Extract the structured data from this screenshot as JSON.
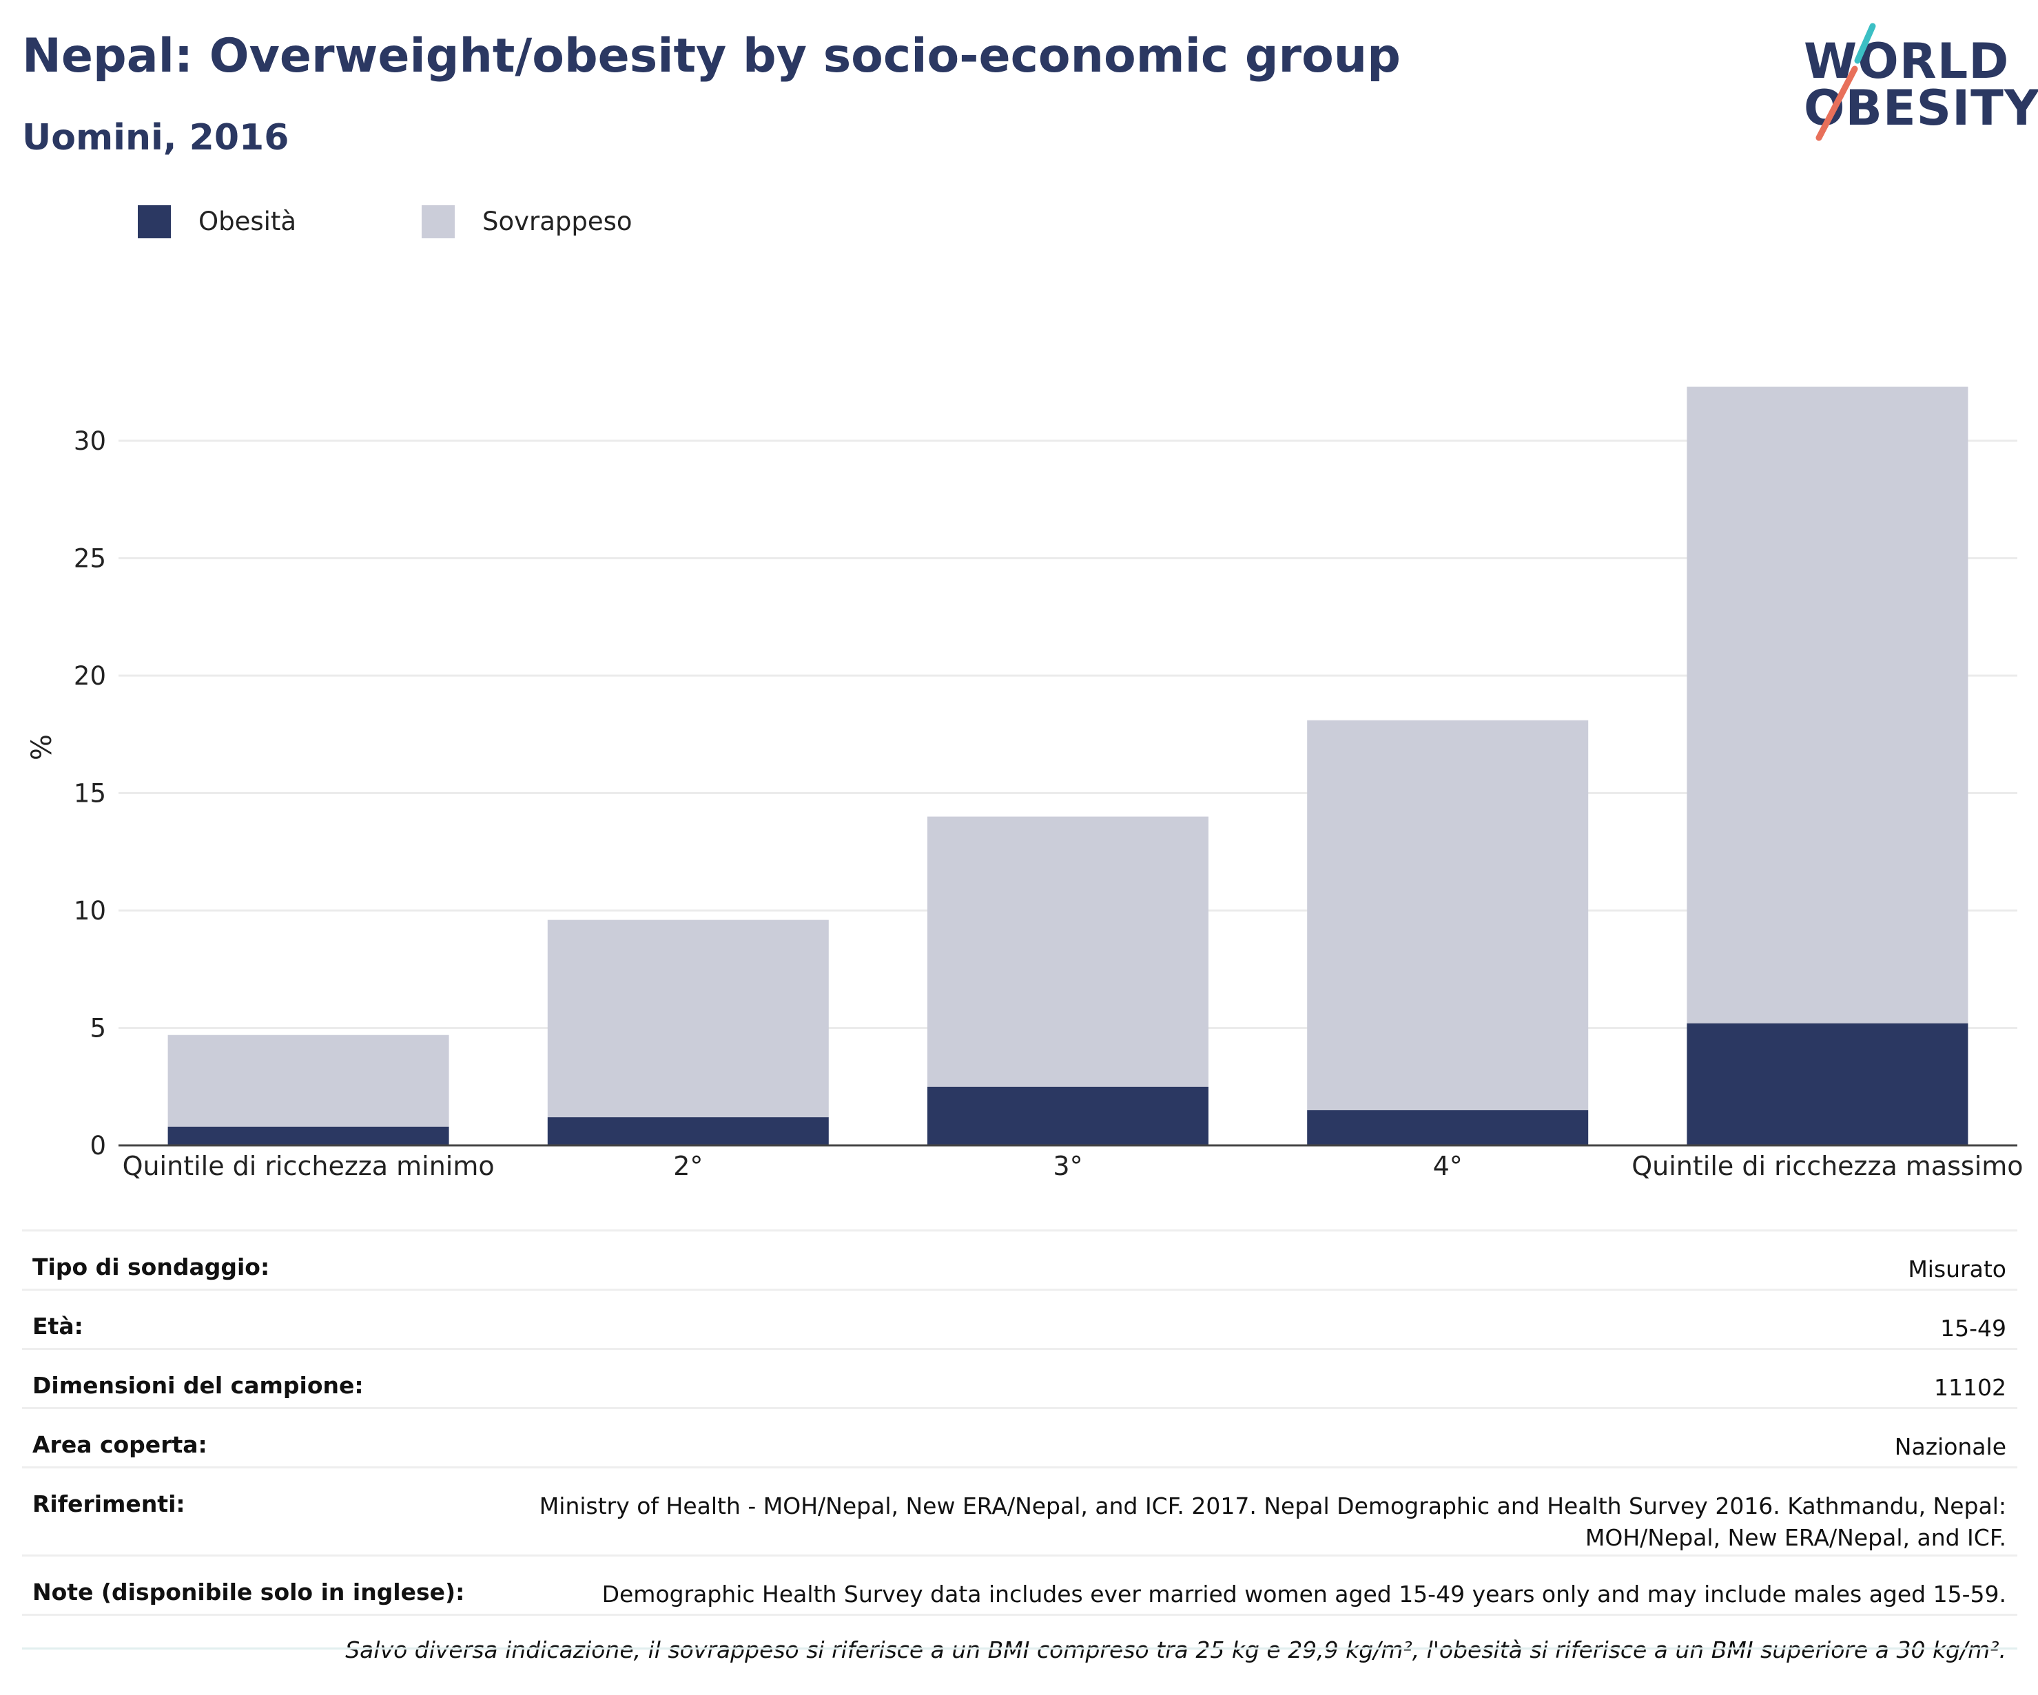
{
  "title": "Nepal: Overweight/obesity by socio-economic group",
  "subtitle": "Uomini, 2016",
  "logo": {
    "line1": "WORLD",
    "line2": "OBESITY",
    "accent1": "#3bbfc4",
    "accent2": "#e8705a"
  },
  "colors": {
    "obesity": "#2b3862",
    "overweight": "#cbcdd9",
    "text": "#2b3862"
  },
  "legend": {
    "placement": "top-left",
    "items": [
      {
        "label": "Obesità",
        "color": "#2b3862"
      },
      {
        "label": "Sovrappeso",
        "color": "#cbcdd9"
      }
    ]
  },
  "chart_data": {
    "type": "bar",
    "stacked": true,
    "categories": [
      "Quintile di ricchezza minimo",
      "2°",
      "3°",
      "4°",
      "Quintile di ricchezza massimo"
    ],
    "series": [
      {
        "name": "Obesità",
        "values": [
          0.8,
          1.2,
          2.5,
          1.5,
          5.2
        ]
      },
      {
        "name": "Sovrappeso",
        "values": [
          3.9,
          8.4,
          11.5,
          16.6,
          27.1
        ]
      }
    ],
    "ylabel": "%",
    "ylim": [
      0,
      33
    ],
    "yticks": [
      0,
      5,
      10,
      15,
      20,
      25,
      30
    ],
    "grid": true
  },
  "info": {
    "rows": [
      {
        "label": "Tipo di sondaggio:",
        "value": [
          "Misurato"
        ]
      },
      {
        "label": "Età:",
        "value": [
          "15-49"
        ]
      },
      {
        "label": "Dimensioni del campione:",
        "value": [
          "11102"
        ]
      },
      {
        "label": "Area coperta:",
        "value": [
          "Nazionale"
        ]
      },
      {
        "label": "Riferimenti:",
        "value": [
          "Ministry of Health - MOH/Nepal, New ERA/Nepal, and ICF. 2017. Nepal Demographic and Health Survey 2016. Kathmandu, Nepal:",
          "MOH/Nepal, New ERA/Nepal, and ICF."
        ]
      },
      {
        "label": "Note (disponibile solo in inglese):",
        "value": [
          "Demographic Health Survey data includes ever married women aged 15-49 years only and may include males aged 15-59."
        ]
      }
    ],
    "footnote": "Salvo diversa indicazione, il sovrappeso si riferisce a un BMI compreso tra 25 kg e 29,9 kg/m², l'obesità si riferisce a un BMI superiore a 30 kg/m²."
  }
}
